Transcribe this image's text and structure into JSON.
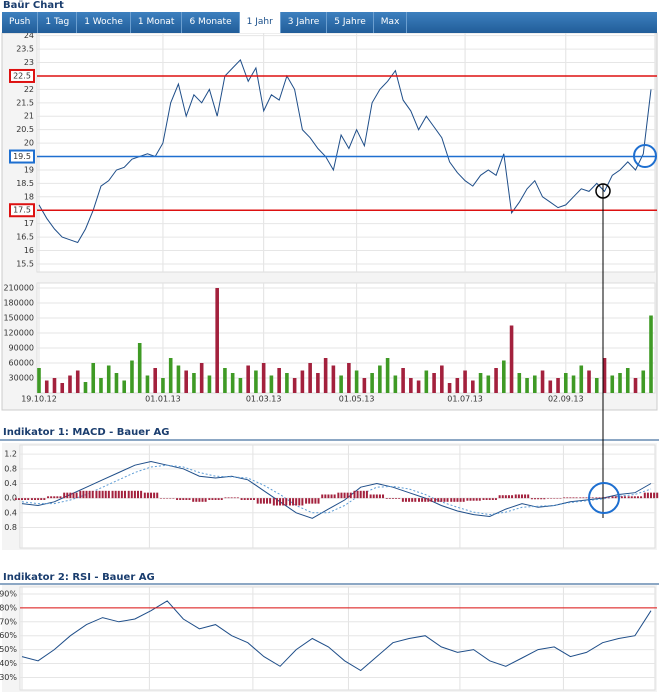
{
  "title": "Baür Chart",
  "tabs": [
    "Push",
    "1 Tag",
    "1 Woche",
    "1 Monat",
    "6 Monate",
    "1 Jahr",
    "3 Jahre",
    "5 Jahre",
    "Max"
  ],
  "active_tab": 5,
  "chart_data": [
    {
      "type": "line",
      "ylim": [
        15.2,
        24.1
      ],
      "yticks": [
        15.5,
        16.0,
        16.5,
        17.0,
        17.5,
        18.0,
        18.5,
        19.0,
        19.5,
        20.0,
        20.5,
        21.0,
        21.5,
        22.0,
        22.5,
        23.0,
        23.5,
        24.0
      ],
      "grid": true,
      "hlines": [
        {
          "value": 22.5,
          "color": "#dd1111"
        },
        {
          "value": 19.5,
          "color": "#1e6fd0"
        },
        {
          "value": 17.5,
          "color": "#dd1111"
        }
      ],
      "series": [
        {
          "color": "#1f4e89",
          "values": [
            17.7,
            17.2,
            16.8,
            16.5,
            16.4,
            16.3,
            16.8,
            17.5,
            18.4,
            18.6,
            19.0,
            19.1,
            19.4,
            19.5,
            19.6,
            19.5,
            20.0,
            21.5,
            22.2,
            21.0,
            21.8,
            21.5,
            22.0,
            21.0,
            22.5,
            22.8,
            23.1,
            22.3,
            22.8,
            21.2,
            21.8,
            21.6,
            22.5,
            22.0,
            20.5,
            20.2,
            19.8,
            19.5,
            19.0,
            20.3,
            19.8,
            20.5,
            19.9,
            21.5,
            22.0,
            22.3,
            22.7,
            21.6,
            21.2,
            20.5,
            21.0,
            20.6,
            20.2,
            19.3,
            18.9,
            18.6,
            18.4,
            18.8,
            19.0,
            18.8,
            19.6,
            17.4,
            17.8,
            18.3,
            18.6,
            18.0,
            17.8,
            17.6,
            17.7,
            18.0,
            18.3,
            18.2,
            18.5,
            18.2,
            18.8,
            19.0,
            19.3,
            19.0,
            19.6,
            22.0
          ]
        }
      ]
    },
    {
      "type": "bar",
      "ylim": [
        0,
        220000
      ],
      "yticks": [
        30000,
        60000,
        90000,
        120000,
        150000,
        180000,
        210000
      ],
      "grid": true,
      "up_color": "#3f9a25",
      "down_color": "#a3213d",
      "categories": [
        "19.10.12",
        null,
        null,
        null,
        null,
        null,
        null,
        null,
        null,
        null,
        null,
        null,
        null,
        null,
        null,
        null,
        "01.01.13",
        null,
        null,
        null,
        null,
        null,
        null,
        null,
        null,
        null,
        null,
        null,
        null,
        "01.03.13",
        null,
        null,
        null,
        null,
        null,
        null,
        null,
        null,
        null,
        null,
        null,
        "01.05.13",
        null,
        null,
        null,
        null,
        null,
        null,
        null,
        null,
        null,
        null,
        null,
        null,
        null,
        "01.07.13",
        null,
        null,
        null,
        null,
        null,
        null,
        null,
        null,
        null,
        null,
        null,
        null,
        "02.09.13",
        null,
        null,
        null,
        null,
        null,
        null,
        null,
        null,
        null,
        null,
        null
      ],
      "values": [
        50000,
        25000,
        30000,
        20000,
        35000,
        45000,
        22000,
        60000,
        30000,
        55000,
        40000,
        25000,
        65000,
        100000,
        35000,
        50000,
        30000,
        70000,
        55000,
        45000,
        40000,
        60000,
        35000,
        210000,
        50000,
        40000,
        30000,
        55000,
        45000,
        60000,
        35000,
        50000,
        40000,
        30000,
        45000,
        60000,
        40000,
        70000,
        55000,
        35000,
        60000,
        45000,
        30000,
        40000,
        55000,
        70000,
        35000,
        50000,
        30000,
        25000,
        45000,
        40000,
        55000,
        20000,
        30000,
        45000,
        25000,
        40000,
        35000,
        50000,
        65000,
        135000,
        40000,
        30000,
        35000,
        45000,
        25000,
        30000,
        40000,
        35000,
        55000,
        45000,
        30000,
        70000,
        35000,
        40000,
        50000,
        30000,
        45000,
        155000
      ]
    },
    {
      "type": "line",
      "title": "Indikator 1: MACD - Bauer AG",
      "ylim": [
        -1.36,
        1.45
      ],
      "yticks": [
        1.2,
        0.8,
        0.4,
        {
          "value": 0,
          "label": "0.0"
        },
        {
          "value": -0.4,
          "label": "0.4"
        },
        {
          "value": -0.8,
          "label": "0.8"
        }
      ],
      "grid": true,
      "series": [
        {
          "color": "#1f4e89",
          "style": "solid",
          "values": [
            -0.15,
            -0.2,
            -0.1,
            0.1,
            0.3,
            0.5,
            0.7,
            0.9,
            1.0,
            0.9,
            0.8,
            0.6,
            0.55,
            0.6,
            0.5,
            0.2,
            -0.1,
            -0.4,
            -0.55,
            -0.3,
            -0.05,
            0.3,
            0.4,
            0.3,
            0.15,
            0.0,
            -0.2,
            -0.35,
            -0.45,
            -0.5,
            -0.3,
            -0.15,
            -0.25,
            -0.2,
            -0.1,
            -0.05,
            0.0,
            0.1,
            0.15,
            0.4
          ]
        },
        {
          "color": "#5b9bd5",
          "style": "dashed",
          "values": [
            -0.1,
            -0.15,
            -0.15,
            -0.05,
            0.1,
            0.3,
            0.5,
            0.7,
            0.85,
            0.9,
            0.85,
            0.7,
            0.6,
            0.58,
            0.55,
            0.35,
            0.1,
            -0.2,
            -0.4,
            -0.4,
            -0.2,
            0.1,
            0.3,
            0.32,
            0.25,
            0.1,
            -0.1,
            -0.25,
            -0.38,
            -0.45,
            -0.38,
            -0.25,
            -0.22,
            -0.2,
            -0.12,
            -0.07,
            -0.02,
            0.05,
            0.1,
            0.25
          ]
        },
        {
          "color": "#a3213d",
          "style": "bar",
          "values": [
            -0.05,
            -0.05,
            0.05,
            0.15,
            0.2,
            0.2,
            0.2,
            0.2,
            0.15,
            0.0,
            -0.05,
            -0.1,
            -0.05,
            0.02,
            -0.05,
            -0.15,
            -0.2,
            -0.2,
            -0.15,
            0.1,
            0.15,
            0.2,
            0.1,
            -0.02,
            -0.1,
            -0.1,
            -0.1,
            -0.1,
            -0.07,
            -0.05,
            0.08,
            0.1,
            -0.03,
            0.0,
            0.02,
            0.02,
            0.02,
            0.05,
            0.05,
            0.15
          ]
        }
      ]
    },
    {
      "type": "line",
      "title": "Indikator 2: RSI - Bauer AG",
      "ylim": [
        21,
        95
      ],
      "yticks": [
        {
          "value": 30,
          "label": "30%"
        },
        {
          "value": 40,
          "label": "40%"
        },
        {
          "value": 50,
          "label": "50%"
        },
        {
          "value": 60,
          "label": "60%"
        },
        {
          "value": 70,
          "label": "70%"
        },
        {
          "value": 80,
          "label": "80%"
        },
        {
          "value": 90,
          "label": "90%"
        }
      ],
      "grid": true,
      "hlines": [
        {
          "value": 80,
          "color": "#dd1111"
        }
      ],
      "series": [
        {
          "color": "#1f4e89",
          "style": "solid",
          "values": [
            45,
            42,
            50,
            60,
            68,
            73,
            70,
            72,
            78,
            85,
            72,
            65,
            68,
            60,
            55,
            45,
            38,
            50,
            58,
            52,
            42,
            35,
            45,
            55,
            58,
            60,
            52,
            48,
            50,
            42,
            38,
            44,
            50,
            52,
            45,
            48,
            55,
            58,
            60,
            78
          ]
        }
      ]
    }
  ]
}
